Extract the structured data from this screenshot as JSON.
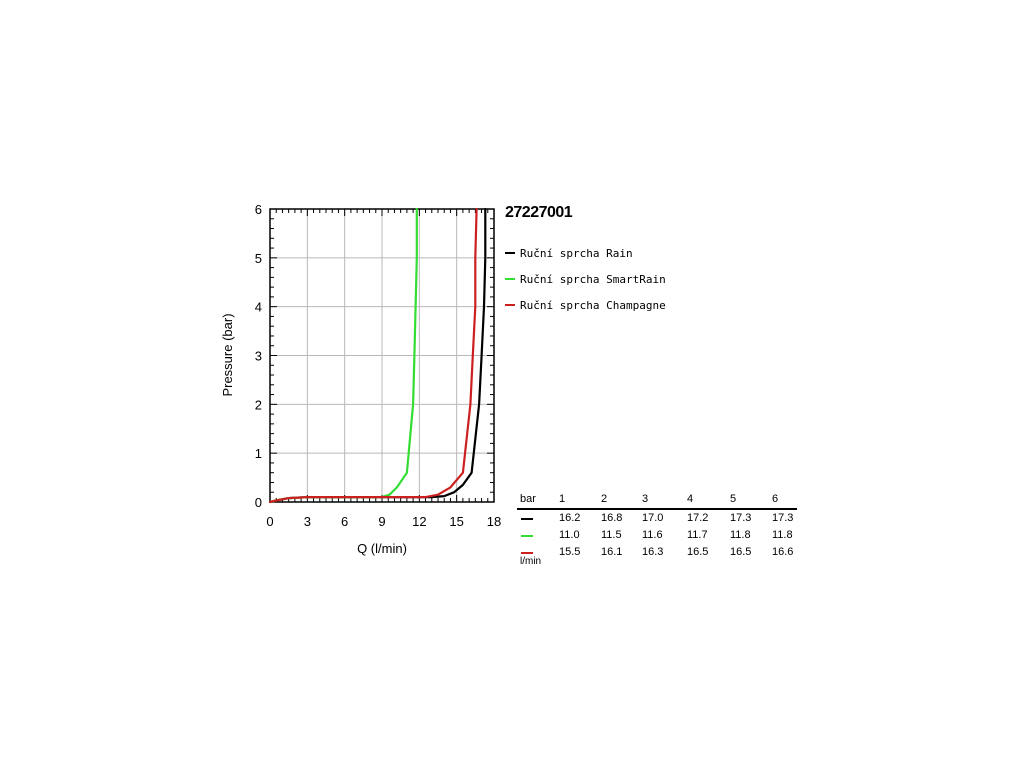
{
  "model": "27227001",
  "colors": {
    "rain": "#000000",
    "smartrain": "#33dd33",
    "champagne": "#cc2020"
  },
  "chart_data": {
    "type": "line",
    "xlabel": "Q (l/min)",
    "ylabel": "Pressure (bar)",
    "xlim": [
      0,
      18
    ],
    "ylim": [
      0,
      6
    ],
    "xticks": [
      0,
      3,
      6,
      9,
      12,
      15,
      18
    ],
    "yticks": [
      0,
      1,
      2,
      3,
      4,
      5,
      6
    ],
    "grid": true,
    "legend_position": "right",
    "series": [
      {
        "name": "Ruční sprcha Rain",
        "color_key": "rain",
        "points": [
          [
            0,
            0
          ],
          [
            0.5,
            0.03
          ],
          [
            1.5,
            0.08
          ],
          [
            3,
            0.1
          ],
          [
            8,
            0.1
          ],
          [
            13,
            0.1
          ],
          [
            14,
            0.12
          ],
          [
            14.8,
            0.2
          ],
          [
            15.5,
            0.35
          ],
          [
            16.2,
            0.6
          ],
          [
            16.8,
            2
          ],
          [
            17.0,
            3
          ],
          [
            17.2,
            4
          ],
          [
            17.3,
            5
          ],
          [
            17.3,
            6
          ]
        ]
      },
      {
        "name": "Ruční sprcha SmartRain",
        "color_key": "smartrain",
        "points": [
          [
            0,
            0
          ],
          [
            0.5,
            0.03
          ],
          [
            1.5,
            0.08
          ],
          [
            3,
            0.1
          ],
          [
            9,
            0.1
          ],
          [
            9.6,
            0.15
          ],
          [
            10.2,
            0.3
          ],
          [
            11.0,
            0.6
          ],
          [
            11.5,
            2
          ],
          [
            11.6,
            3
          ],
          [
            11.7,
            4
          ],
          [
            11.8,
            5
          ],
          [
            11.8,
            6
          ]
        ]
      },
      {
        "name": "Ruční sprcha Champagne",
        "color_key": "champagne",
        "points": [
          [
            0,
            0
          ],
          [
            0.5,
            0.03
          ],
          [
            1.5,
            0.08
          ],
          [
            3,
            0.1
          ],
          [
            8,
            0.1
          ],
          [
            12.5,
            0.1
          ],
          [
            13.5,
            0.15
          ],
          [
            14.5,
            0.3
          ],
          [
            15.5,
            0.6
          ],
          [
            16.1,
            2
          ],
          [
            16.3,
            3
          ],
          [
            16.5,
            4
          ],
          [
            16.5,
            5
          ],
          [
            16.6,
            6
          ]
        ]
      }
    ]
  },
  "table": {
    "header_label": "bar",
    "columns": [
      "1",
      "2",
      "3",
      "4",
      "5",
      "6"
    ],
    "rows": [
      {
        "color_key": "rain",
        "values": [
          "16.2",
          "16.8",
          "17.0",
          "17.2",
          "17.3",
          "17.3"
        ]
      },
      {
        "color_key": "smartrain",
        "values": [
          "11.0",
          "11.5",
          "11.6",
          "11.7",
          "11.8",
          "11.8"
        ]
      },
      {
        "color_key": "champagne",
        "values": [
          "15.5",
          "16.1",
          "16.3",
          "16.5",
          "16.5",
          "16.6"
        ]
      }
    ],
    "unit_label": "l/min"
  }
}
